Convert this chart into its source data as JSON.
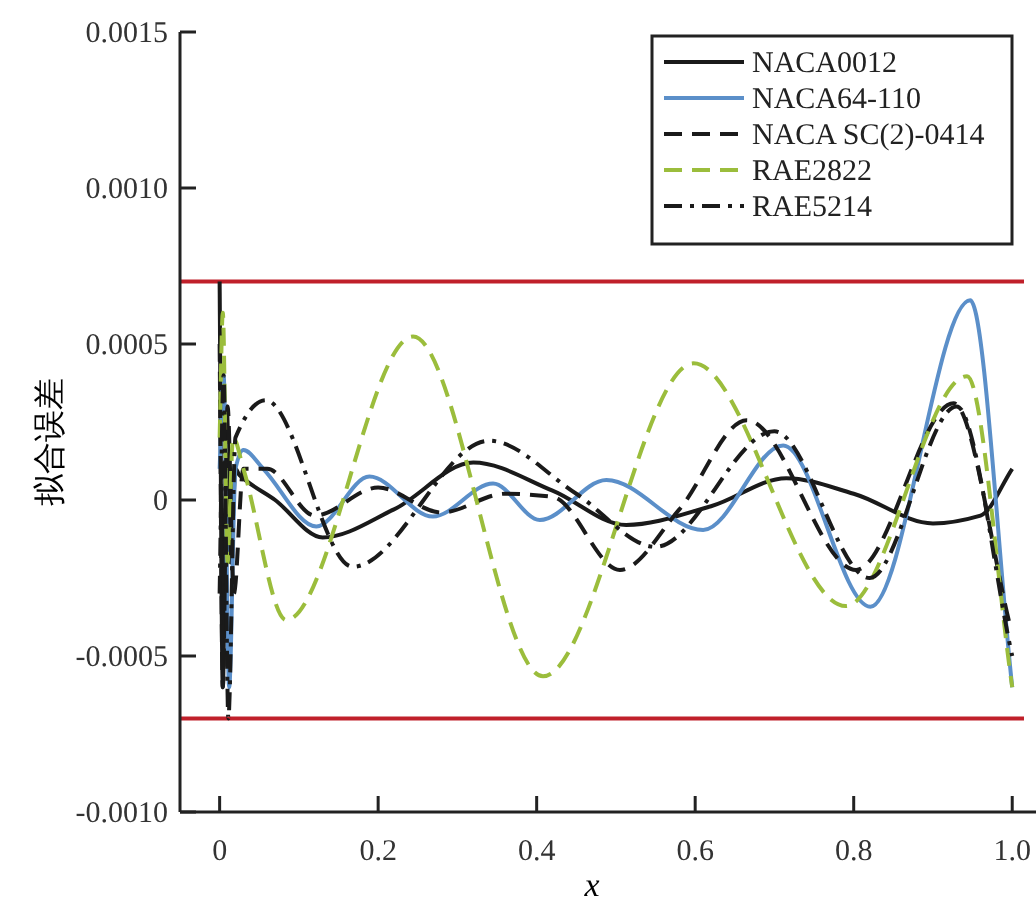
{
  "chart_data": {
    "type": "line",
    "xlabel": "x",
    "ylabel": "拟合误差",
    "xlim": [
      -0.05,
      1.03
    ],
    "ylim": [
      -0.001,
      0.0015
    ],
    "xticks": [
      0,
      0.2,
      0.4,
      0.6,
      0.8,
      {
        "value": 1,
        "label": "1.0"
      }
    ],
    "yticks": [
      {
        "value": -0.001,
        "label": "-0.0010"
      },
      {
        "value": -0.0005,
        "label": "-0.0005"
      },
      0,
      {
        "value": 0.0005,
        "label": "0.0005"
      },
      {
        "value": 0.001,
        "label": "0.0010"
      },
      {
        "value": 0.0015,
        "label": "0.0015"
      }
    ],
    "grid": false,
    "legend": "top right",
    "ref_lines": [
      {
        "axis": "y",
        "value": 0.0007,
        "color": "#c0202a"
      },
      {
        "axis": "y",
        "value": -0.0007,
        "color": "#c0202a"
      }
    ],
    "series": [
      {
        "name": "NACA0012",
        "color": "#1a1a1a",
        "line_style": "solid",
        "x": [
          0,
          0.004,
          0.009,
          0.014,
          0.02,
          0.025,
          0.07,
          0.13,
          0.22,
          0.32,
          0.42,
          0.513,
          0.62,
          0.715,
          0.8,
          0.9,
          0.96,
          1.0
        ],
        "values": [
          0.0007,
          -0.0006,
          0.0003,
          -0.0002,
          0.0001,
          8e-05,
          0.0,
          -0.00012,
          -3e-05,
          0.00012,
          3e-05,
          -8e-05,
          -2e-05,
          7e-05,
          2e-05,
          -7.5e-05,
          -5e-05,
          0.0001
        ]
      },
      {
        "name": "NACA64-110",
        "color": "#5b8fc9",
        "line_style": "solid",
        "x": [
          0,
          0.005,
          0.012,
          0.02,
          0.03,
          0.055,
          0.122,
          0.189,
          0.269,
          0.345,
          0.404,
          0.488,
          0.61,
          0.711,
          0.821,
          0.947,
          1.0
        ],
        "values": [
          0.0001,
          0.0004,
          -0.0006,
          0.0001,
          0.00016,
          0.0001,
          -8.5e-05,
          7.5e-05,
          -5.3e-05,
          5.3e-05,
          -6.4e-05,
          6.4e-05,
          -9.6e-05,
          0.000175,
          -0.000342,
          0.00064,
          -0.0006
        ]
      },
      {
        "name": "NACA SC(2)-0414",
        "color": "#1a1a1a",
        "line_style": "dashed",
        "x": [
          0,
          0.004,
          0.01,
          0.018,
          0.03,
          0.06,
          0.12,
          0.2,
          0.28,
          0.36,
          0.42,
          0.505,
          0.58,
          0.665,
          0.803,
          0.926,
          0.998
        ],
        "values": [
          0.0005,
          -0.0006,
          0.0003,
          -0.0003,
          0.0001,
          0.0001,
          -5e-05,
          4e-05,
          -4e-05,
          2e-05,
          1e-05,
          -0.000224,
          -3e-05,
          0.000256,
          -0.000224,
          0.00031,
          -0.00041
        ]
      },
      {
        "name": "RAE2822",
        "color": "#9bbd3c",
        "line_style": "dashed",
        "x": [
          0,
          0.004,
          0.01,
          0.017,
          0.03,
          0.084,
          0.244,
          0.408,
          0.598,
          0.79,
          0.943,
          1.0
        ],
        "values": [
          0.0002,
          0.0006,
          -0.0002,
          0.0002,
          0.0001,
          -0.000385,
          0.000524,
          -0.000565,
          0.000438,
          -0.00034,
          0.000397,
          -0.0006
        ]
      },
      {
        "name": "RAE5214",
        "color": "#1a1a1a",
        "line_style": "dashdot",
        "x": [
          0,
          0.005,
          0.011,
          0.02,
          0.058,
          0.168,
          0.34,
          0.45,
          0.55,
          0.7,
          0.82,
          0.93,
          1.0
        ],
        "values": [
          -0.0003,
          0.0004,
          -0.0007,
          0.0002,
          0.00032,
          -0.000214,
          0.00019,
          2e-05,
          -0.00015,
          0.00022,
          -0.00025,
          0.0003,
          -0.0005
        ]
      }
    ]
  }
}
